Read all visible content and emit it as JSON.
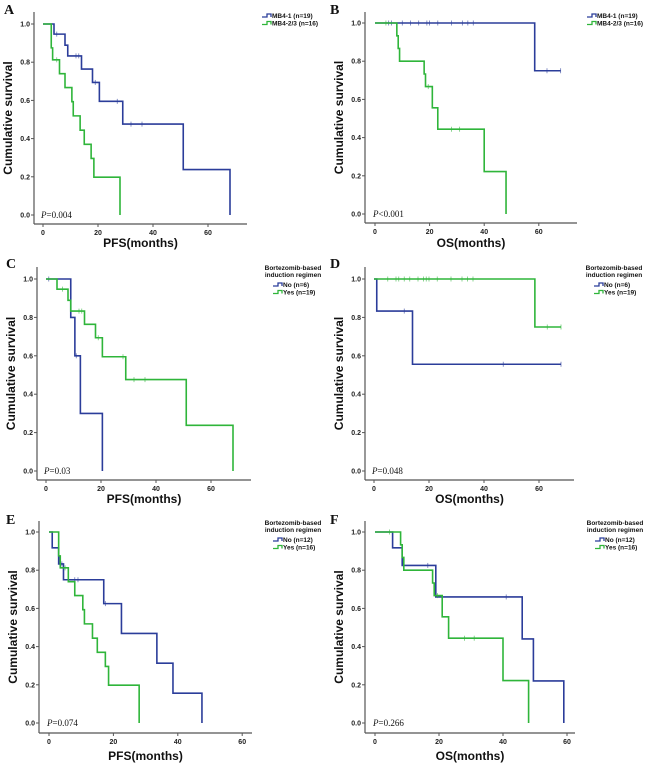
{
  "colors": {
    "series1": "#2b3d9a",
    "series2": "#2fb53a",
    "axis": "#555555"
  },
  "chart_data": [
    {
      "panel": "A",
      "type": "line",
      "step": true,
      "xlabel": "PFS(months)",
      "ylabel": "Cumulative survival",
      "xlim": [
        0,
        70
      ],
      "ylim": [
        0,
        1.0
      ],
      "xticks": [
        "0",
        "20",
        "40",
        "60"
      ],
      "yticks": [
        "0.0",
        "0.2",
        "0.4",
        "0.6",
        "0.8",
        "1.0"
      ],
      "pvalue": "=0.004",
      "legend": {
        "title": "",
        "placement": "top-right"
      },
      "series": [
        {
          "name": "MB4-1 (n=19)",
          "color": "series1",
          "steps": [
            [
              0,
              1.0
            ],
            [
              4,
              0.947
            ],
            [
              8,
              0.889
            ],
            [
              9,
              0.833
            ],
            [
              14,
              0.764
            ],
            [
              18,
              0.694
            ],
            [
              20.5,
              0.595
            ],
            [
              29,
              0.476
            ],
            [
              51,
              0.238
            ],
            [
              68,
              0.0
            ]
          ],
          "censored": [
            [
              5,
              0.947
            ],
            [
              12,
              0.833
            ],
            [
              13,
              0.833
            ],
            [
              19,
              0.694
            ],
            [
              27,
              0.595
            ],
            [
              32,
              0.476
            ],
            [
              36,
              0.476
            ]
          ]
        },
        {
          "name": "MB4-2/3 (n=16)",
          "color": "series2",
          "steps": [
            [
              0,
              1.0
            ],
            [
              3,
              0.875
            ],
            [
              3.5,
              0.8125
            ],
            [
              6,
              0.74
            ],
            [
              8,
              0.667
            ],
            [
              10.5,
              0.593
            ],
            [
              11,
              0.519
            ],
            [
              13.5,
              0.444
            ],
            [
              15,
              0.37
            ],
            [
              17.5,
              0.296
            ],
            [
              18.5,
              0.198
            ],
            [
              28,
              0.0
            ]
          ],
          "censored": [
            [
              5,
              0.8125
            ]
          ]
        }
      ]
    },
    {
      "panel": "B",
      "type": "line",
      "step": true,
      "xlabel": "OS(months)",
      "ylabel": "Cumulative survival",
      "xlim": [
        0,
        70
      ],
      "ylim": [
        0,
        1.0
      ],
      "xticks": [
        "0",
        "20",
        "40",
        "60"
      ],
      "yticks": [
        "0.0",
        "0.2",
        "0.4",
        "0.6",
        "0.8",
        "1.0"
      ],
      "pvalue": "<0.001",
      "legend": {
        "title": "",
        "placement": "top-right"
      },
      "series": [
        {
          "name": "MB4-1 (n=19)",
          "color": "series1",
          "steps": [
            [
              0,
              1.0
            ],
            [
              58.5,
              0.75
            ],
            [
              68,
              0.75
            ]
          ],
          "censored": [
            [
              5,
              1.0
            ],
            [
              6,
              1.0
            ],
            [
              10,
              1.0
            ],
            [
              13,
              1.0
            ],
            [
              16,
              1.0
            ],
            [
              19,
              1.0
            ],
            [
              20,
              1.0
            ],
            [
              23,
              1.0
            ],
            [
              28,
              1.0
            ],
            [
              32,
              1.0
            ],
            [
              34,
              1.0
            ],
            [
              36,
              1.0
            ],
            [
              63,
              0.75
            ],
            [
              68,
              0.75
            ]
          ]
        },
        {
          "name": "MB4-2/3 (n=16)",
          "color": "series2",
          "steps": [
            [
              0,
              1.0
            ],
            [
              8,
              0.933
            ],
            [
              8.5,
              0.867
            ],
            [
              9,
              0.8
            ],
            [
              18,
              0.733
            ],
            [
              18.5,
              0.667
            ],
            [
              21,
              0.556
            ],
            [
              23,
              0.444
            ],
            [
              40,
              0.222
            ],
            [
              48,
              0.0
            ]
          ],
          "censored": [
            [
              4,
              1.0
            ],
            [
              19.5,
              0.667
            ],
            [
              28,
              0.444
            ],
            [
              31,
              0.444
            ]
          ]
        }
      ]
    },
    {
      "panel": "C",
      "type": "line",
      "step": true,
      "xlabel": "PFS(months)",
      "ylabel": "Cumulative survival",
      "xlim": [
        0,
        70
      ],
      "ylim": [
        0,
        1.0
      ],
      "xticks": [
        "0",
        "20",
        "40",
        "60"
      ],
      "yticks": [
        "0.0",
        "0.2",
        "0.4",
        "0.6",
        "0.8",
        "1.0"
      ],
      "pvalue": "=0.03",
      "legend": {
        "title": "Bortezomib-based induction regimen",
        "placement": "top-right"
      },
      "series": [
        {
          "name": "No (n=6)",
          "color": "series1",
          "steps": [
            [
              0,
              1.0
            ],
            [
              9,
              0.8
            ],
            [
              10.5,
              0.6
            ],
            [
              12.5,
              0.3
            ],
            [
              20.5,
              0.0
            ]
          ],
          "censored": [
            [
              1,
              1.0
            ],
            [
              11,
              0.6
            ]
          ]
        },
        {
          "name": "Yes (n=19)",
          "color": "series2",
          "steps": [
            [
              0,
              1.0
            ],
            [
              4,
              0.947
            ],
            [
              8,
              0.889
            ],
            [
              9,
              0.833
            ],
            [
              14,
              0.764
            ],
            [
              18,
              0.694
            ],
            [
              20.5,
              0.595
            ],
            [
              29,
              0.476
            ],
            [
              51,
              0.238
            ],
            [
              68,
              0.0
            ]
          ],
          "censored": [
            [
              6,
              0.947
            ],
            [
              12,
              0.833
            ],
            [
              13,
              0.833
            ],
            [
              19,
              0.694
            ],
            [
              28,
              0.595
            ],
            [
              32,
              0.476
            ],
            [
              36,
              0.476
            ]
          ]
        }
      ]
    },
    {
      "panel": "D",
      "type": "line",
      "step": true,
      "xlabel": "OS(months)",
      "ylabel": "Cumulative survival",
      "xlim": [
        0,
        70
      ],
      "ylim": [
        0,
        1.0
      ],
      "xticks": [
        "0",
        "20",
        "40",
        "60"
      ],
      "yticks": [
        "0.0",
        "0.2",
        "0.4",
        "0.6",
        "0.8",
        "1.0"
      ],
      "pvalue": "=0.048",
      "legend": {
        "title": "Bortezomib-based induction regimen",
        "placement": "top-right"
      },
      "series": [
        {
          "name": "No (n=6)",
          "color": "series1",
          "steps": [
            [
              0,
              1.0
            ],
            [
              1,
              0.833
            ],
            [
              14,
              0.556
            ],
            [
              68,
              0.556
            ]
          ],
          "censored": [
            [
              11,
              0.833
            ],
            [
              47,
              0.556
            ],
            [
              68,
              0.556
            ]
          ]
        },
        {
          "name": "Yes (n=19)",
          "color": "series2",
          "steps": [
            [
              0,
              1.0
            ],
            [
              58.5,
              0.75
            ],
            [
              68,
              0.75
            ]
          ],
          "censored": [
            [
              5,
              1.0
            ],
            [
              8,
              1.0
            ],
            [
              9,
              1.0
            ],
            [
              11,
              1.0
            ],
            [
              13,
              1.0
            ],
            [
              16,
              1.0
            ],
            [
              18,
              1.0
            ],
            [
              19,
              1.0
            ],
            [
              20,
              1.0
            ],
            [
              23,
              1.0
            ],
            [
              28,
              1.0
            ],
            [
              32,
              1.0
            ],
            [
              34,
              1.0
            ],
            [
              36,
              1.0
            ],
            [
              63,
              0.75
            ],
            [
              68,
              0.75
            ]
          ]
        }
      ]
    },
    {
      "panel": "E",
      "type": "line",
      "step": true,
      "xlabel": "PFS(months)",
      "ylabel": "Cumulative survival",
      "xlim": [
        0,
        60
      ],
      "ylim": [
        0,
        1.0
      ],
      "xticks": [
        "0",
        "20",
        "40",
        "60"
      ],
      "yticks": [
        "0.0",
        "0.2",
        "0.4",
        "0.6",
        "0.8",
        "1.0"
      ],
      "pvalue": "=0.074",
      "legend": {
        "title": "Bortezomib-based induction regimen",
        "placement": "top-right"
      },
      "series": [
        {
          "name": "No (n=12)",
          "color": "series1",
          "steps": [
            [
              0,
              1.0
            ],
            [
              1,
              0.917
            ],
            [
              3,
              0.833
            ],
            [
              4.5,
              0.75
            ],
            [
              17,
              0.625
            ],
            [
              22.5,
              0.469
            ],
            [
              33.5,
              0.313
            ],
            [
              38.5,
              0.156
            ],
            [
              47.5,
              0.0
            ]
          ],
          "censored": [
            [
              4,
              0.833
            ],
            [
              8,
              0.75
            ],
            [
              9,
              0.75
            ],
            [
              17.5,
              0.625
            ]
          ]
        },
        {
          "name": "Yes (n=16)",
          "color": "series2",
          "steps": [
            [
              0,
              1.0
            ],
            [
              3,
              0.875
            ],
            [
              3.5,
              0.8125
            ],
            [
              6,
              0.74
            ],
            [
              8,
              0.667
            ],
            [
              10.5,
              0.593
            ],
            [
              11,
              0.519
            ],
            [
              13.5,
              0.444
            ],
            [
              15,
              0.37
            ],
            [
              17.5,
              0.296
            ],
            [
              18.5,
              0.198
            ],
            [
              28,
              0.0
            ]
          ],
          "censored": [
            [
              5,
              0.8125
            ]
          ]
        }
      ]
    },
    {
      "panel": "F",
      "type": "line",
      "step": true,
      "xlabel": "OS(months)",
      "ylabel": "Cumulative survival",
      "xlim": [
        0,
        60
      ],
      "ylim": [
        0,
        1.0
      ],
      "xticks": [
        "0",
        "20",
        "40",
        "60"
      ],
      "yticks": [
        "0.0",
        "0.2",
        "0.4",
        "0.6",
        "0.8",
        "1.0"
      ],
      "pvalue": "=0.266",
      "legend": {
        "title": "Bortezomib-based induction regimen",
        "placement": "top-right"
      },
      "series": [
        {
          "name": "No (n=12)",
          "color": "series1",
          "steps": [
            [
              0,
              1.0
            ],
            [
              5.5,
              0.917
            ],
            [
              8.5,
              0.825
            ],
            [
              19,
              0.66
            ],
            [
              46,
              0.44
            ],
            [
              49.5,
              0.22
            ],
            [
              59,
              0.0
            ]
          ],
          "censored": [
            [
              16.5,
              0.825
            ],
            [
              41,
              0.66
            ]
          ]
        },
        {
          "name": "Yes (n=16)",
          "color": "series2",
          "steps": [
            [
              0,
              1.0
            ],
            [
              8,
              0.933
            ],
            [
              8.5,
              0.867
            ],
            [
              9,
              0.8
            ],
            [
              18,
              0.733
            ],
            [
              18.5,
              0.667
            ],
            [
              21,
              0.556
            ],
            [
              23,
              0.444
            ],
            [
              40,
              0.222
            ],
            [
              48,
              0.0
            ]
          ],
          "censored": [
            [
              4.5,
              1.0
            ],
            [
              19.5,
              0.667
            ],
            [
              28,
              0.444
            ],
            [
              31,
              0.444
            ]
          ]
        }
      ]
    }
  ]
}
